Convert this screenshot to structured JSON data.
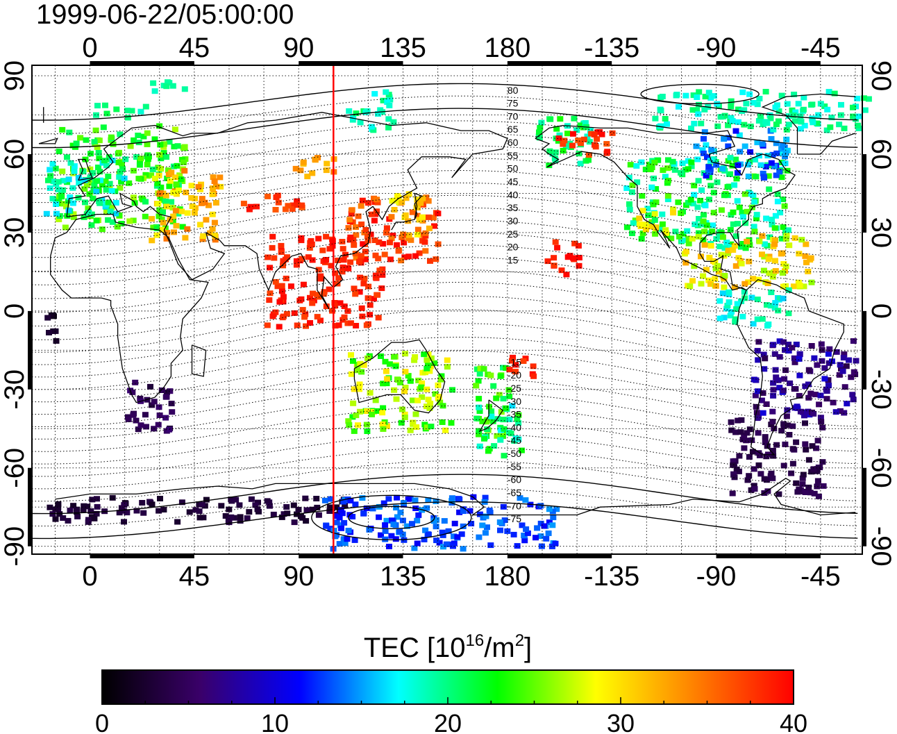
{
  "timestamp": "1999-06-22/05:00:00",
  "map": {
    "lon_ticks": [
      "0",
      "45",
      "90",
      "135",
      "180",
      "-135",
      "-90",
      "-45"
    ],
    "lon_tick_values": [
      0,
      45,
      90,
      135,
      180,
      225,
      270,
      315
    ],
    "lat_ticks": [
      "90",
      "60",
      "30",
      "0",
      "-30",
      "-60",
      "-90"
    ],
    "lat_tick_values": [
      90,
      60,
      30,
      0,
      -30,
      -60,
      -90
    ],
    "lon_range": [
      -25,
      333
    ],
    "lat_range": [
      -93,
      94
    ],
    "terminator_lon": 105,
    "terminator_color": "#ff0000",
    "magnetic_labels_north": [
      "80",
      "75",
      "70",
      "65",
      "60",
      "55",
      "50",
      "45",
      "40",
      "35",
      "30",
      "25",
      "20",
      "15"
    ],
    "magnetic_labels_south": [
      "-15",
      "-20",
      "-25",
      "-30",
      "-35",
      "-40",
      "-45",
      "-50",
      "-55",
      "-60",
      "-65",
      "-70",
      "-75"
    ]
  },
  "colorbar": {
    "title_prefix": "TEC  [10",
    "title_exp1": "16",
    "title_mid": "/m",
    "title_exp2": "2",
    "title_suffix": "]",
    "ticks": [
      "0",
      "10",
      "20",
      "30",
      "40"
    ],
    "min": 0,
    "max": 40,
    "stops": [
      "#000000",
      "#3a006a",
      "#0000ff",
      "#00ffff",
      "#00ff00",
      "#ffff00",
      "#ff8000",
      "#ff0000"
    ]
  },
  "tec_regions": [
    {
      "lon": [
        -15,
        40
      ],
      "lat": [
        32,
        72
      ],
      "tec": [
        20,
        27
      ]
    },
    {
      "lon": [
        25,
        55
      ],
      "lat": [
        28,
        55
      ],
      "tec": [
        28,
        35
      ]
    },
    {
      "lon": [
        -20,
        15
      ],
      "lat": [
        38,
        60
      ],
      "tec": [
        16,
        22
      ]
    },
    {
      "lon": [
        25,
        40
      ],
      "lat": [
        85,
        90
      ],
      "tec": [
        18,
        20
      ]
    },
    {
      "lon": [
        0,
        25
      ],
      "lat": [
        75,
        80
      ],
      "tec": [
        18,
        22
      ]
    },
    {
      "lon": [
        65,
        92
      ],
      "lat": [
        38,
        46
      ],
      "tec": [
        36,
        40
      ]
    },
    {
      "lon": [
        85,
        105
      ],
      "lat": [
        52,
        60
      ],
      "tec": [
        31,
        35
      ]
    },
    {
      "lon": [
        110,
        150
      ],
      "lat": [
        20,
        45
      ],
      "tec": [
        34,
        40
      ]
    },
    {
      "lon": [
        128,
        145
      ],
      "lat": [
        30,
        46
      ],
      "tec": [
        28,
        33
      ]
    },
    {
      "lon": [
        75,
        125
      ],
      "lat": [
        -5,
        30
      ],
      "tec": [
        37,
        40
      ]
    },
    {
      "lon": [
        110,
        130
      ],
      "lat": [
        70,
        85
      ],
      "tec": [
        17,
        21
      ]
    },
    {
      "lon": [
        110,
        155
      ],
      "lat": [
        -45,
        -15
      ],
      "tec": [
        22,
        30
      ]
    },
    {
      "lon": [
        165,
        180
      ],
      "lat": [
        -48,
        -20
      ],
      "tec": [
        20,
        26
      ]
    },
    {
      "lon": [
        178,
        190
      ],
      "lat": [
        -25,
        -15
      ],
      "tec": [
        37,
        40
      ]
    },
    {
      "lon": [
        195,
        210
      ],
      "lat": [
        15,
        28
      ],
      "tec": [
        37,
        40
      ]
    },
    {
      "lon": [
        190,
        215
      ],
      "lat": [
        55,
        75
      ],
      "tec": [
        18,
        24
      ]
    },
    {
      "lon": [
        200,
        225
      ],
      "lat": [
        60,
        70
      ],
      "tec": [
        36,
        40
      ]
    },
    {
      "lon": [
        230,
        300
      ],
      "lat": [
        25,
        60
      ],
      "tec": [
        17,
        25
      ]
    },
    {
      "lon": [
        235,
        252
      ],
      "lat": [
        30,
        40
      ],
      "tec": [
        27,
        31
      ]
    },
    {
      "lon": [
        260,
        300
      ],
      "lat": [
        52,
        70
      ],
      "tec": [
        11,
        17
      ]
    },
    {
      "lon": [
        240,
        335
      ],
      "lat": [
        70,
        85
      ],
      "tec": [
        17,
        21
      ]
    },
    {
      "lon": [
        255,
        310
      ],
      "lat": [
        10,
        30
      ],
      "tec": [
        26,
        33
      ]
    },
    {
      "lon": [
        270,
        300
      ],
      "lat": [
        -5,
        10
      ],
      "tec": [
        16,
        20
      ]
    },
    {
      "lon": [
        285,
        330
      ],
      "lat": [
        -40,
        -10
      ],
      "tec": [
        4,
        10
      ]
    },
    {
      "lon": [
        275,
        315
      ],
      "lat": [
        -70,
        -40
      ],
      "tec": [
        3,
        5
      ]
    },
    {
      "lon": [
        -20,
        -15
      ],
      "lat": [
        -15,
        0
      ],
      "tec": [
        1,
        3
      ]
    },
    {
      "lon": [
        15,
        35
      ],
      "lat": [
        -45,
        -25
      ],
      "tec": [
        3,
        6
      ]
    },
    {
      "lon": [
        -20,
        110
      ],
      "lat": [
        -80,
        -70
      ],
      "tec": [
        2,
        4
      ]
    },
    {
      "lon": [
        100,
        200
      ],
      "lat": [
        -90,
        -70
      ],
      "tec": [
        11,
        15
      ]
    },
    {
      "lon": [
        165,
        185
      ],
      "lat": [
        -55,
        -35
      ],
      "tec": [
        16,
        24
      ]
    }
  ]
}
